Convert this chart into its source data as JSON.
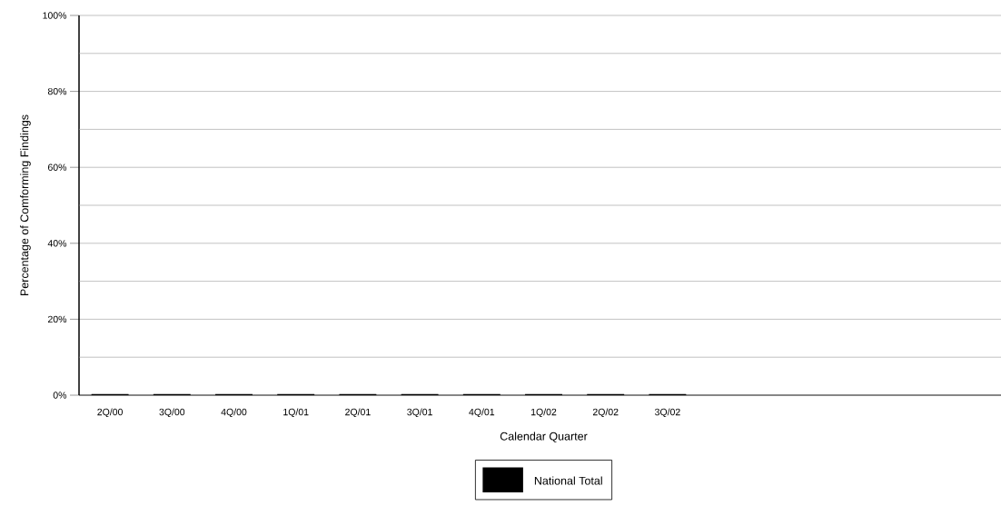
{
  "chart_data": {
    "type": "bar",
    "xlabel": "Calendar Quarter",
    "ylabel": "Percentage of Comforming Findings",
    "categories": [
      "2Q/00",
      "3Q/00",
      "4Q/00",
      "1Q/01",
      "2Q/01",
      "3Q/01",
      "4Q/01",
      "1Q/02",
      "2Q/02",
      "3Q/02",
      null,
      null,
      null,
      null,
      null
    ],
    "series": [
      {
        "name": "National Total",
        "color": "#000000",
        "values": [
          0,
          0,
          0,
          0,
          0,
          0,
          0,
          0,
          0,
          0,
          null,
          null,
          null,
          null,
          null
        ]
      }
    ],
    "ylim": [
      0,
      100
    ],
    "yticks": [
      {
        "value": 0,
        "label": "0%"
      },
      {
        "value": 10,
        "label": null
      },
      {
        "value": 20,
        "label": "20%"
      },
      {
        "value": 30,
        "label": null
      },
      {
        "value": 40,
        "label": "40%"
      },
      {
        "value": 50,
        "label": null
      },
      {
        "value": 60,
        "label": "60%"
      },
      {
        "value": 70,
        "label": null
      },
      {
        "value": 80,
        "label": "80%"
      },
      {
        "value": 90,
        "label": null
      },
      {
        "value": 100,
        "label": "100%"
      }
    ],
    "grid": "y",
    "legend": "bottom"
  }
}
